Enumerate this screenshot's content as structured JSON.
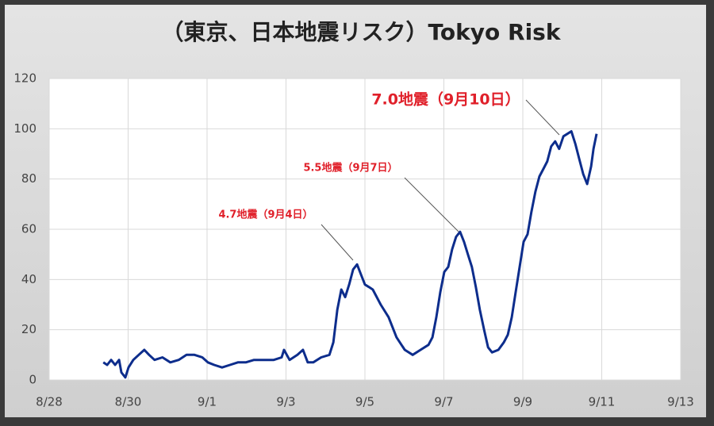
{
  "chart_data": {
    "type": "line",
    "title": "（東京、日本地震リスク）Tokyo Risk",
    "xlim": [
      0,
      16
    ],
    "xticks": [
      {
        "value": 0,
        "label": "8/28"
      },
      {
        "value": 2,
        "label": "8/30"
      },
      {
        "value": 4,
        "label": "9/1"
      },
      {
        "value": 6,
        "label": "9/3"
      },
      {
        "value": 8,
        "label": "9/5"
      },
      {
        "value": 10,
        "label": "9/7"
      },
      {
        "value": 12,
        "label": "9/9"
      },
      {
        "value": 14,
        "label": "9/11"
      },
      {
        "value": 16,
        "label": "9/13"
      }
    ],
    "ylim": [
      0,
      120
    ],
    "yticks": [
      0,
      20,
      40,
      60,
      80,
      100,
      120
    ],
    "grid": true,
    "annotations": [
      "4.7地震（9月4日）",
      "5.5地震（9月7日）",
      "7.0地震（9月10日）"
    ],
    "annotation_color": "#e0202a",
    "series": [
      {
        "color": "#0d2d8c",
        "x": [
          1.37,
          1.47,
          1.57,
          1.67,
          1.77,
          1.83,
          1.93,
          2.01,
          2.13,
          2.27,
          2.41,
          2.53,
          2.67,
          2.87,
          3.07,
          3.28,
          3.48,
          3.68,
          3.88,
          4.02,
          4.18,
          4.38,
          4.58,
          4.78,
          4.98,
          5.19,
          5.39,
          5.69,
          5.89,
          5.95,
          6.09,
          6.29,
          6.43,
          6.55,
          6.69,
          6.89,
          7.1,
          7.2,
          7.3,
          7.4,
          7.5,
          7.6,
          7.7,
          7.8,
          7.9,
          8.0,
          8.1,
          8.2,
          8.3,
          8.4,
          8.6,
          8.8,
          9.01,
          9.21,
          9.41,
          9.61,
          9.71,
          9.81,
          9.91,
          10.01,
          10.11,
          10.21,
          10.31,
          10.41,
          10.51,
          10.61,
          10.71,
          10.81,
          10.91,
          11.02,
          11.12,
          11.22,
          11.38,
          11.52,
          11.62,
          11.72,
          11.82,
          11.92,
          12.02,
          12.12,
          12.22,
          12.32,
          12.42,
          12.52,
          12.62,
          12.72,
          12.82,
          12.92,
          13.03,
          13.13,
          13.23,
          13.33,
          13.43,
          13.53,
          13.63,
          13.73,
          13.79,
          13.87
        ],
        "values": [
          7,
          6,
          8,
          6,
          8,
          3,
          1,
          5,
          8,
          10,
          12,
          10,
          8,
          9,
          7,
          8,
          10,
          10,
          9,
          7,
          6,
          5,
          6,
          7,
          7,
          8,
          8,
          8,
          9,
          12,
          8,
          10,
          12,
          7,
          7,
          9,
          10,
          15,
          28,
          36,
          33,
          38,
          44,
          46,
          42,
          38,
          37,
          36,
          33,
          30,
          25,
          17,
          12,
          10,
          12,
          14,
          17,
          25,
          35,
          43,
          45,
          52,
          57,
          59,
          55,
          50,
          45,
          37,
          28,
          20,
          13,
          11,
          12,
          15,
          18,
          25,
          35,
          45,
          55,
          58,
          67,
          75,
          81,
          84,
          87,
          93,
          95,
          92,
          97,
          98,
          99,
          94,
          88,
          82,
          78,
          85,
          92,
          98
        ]
      }
    ]
  }
}
